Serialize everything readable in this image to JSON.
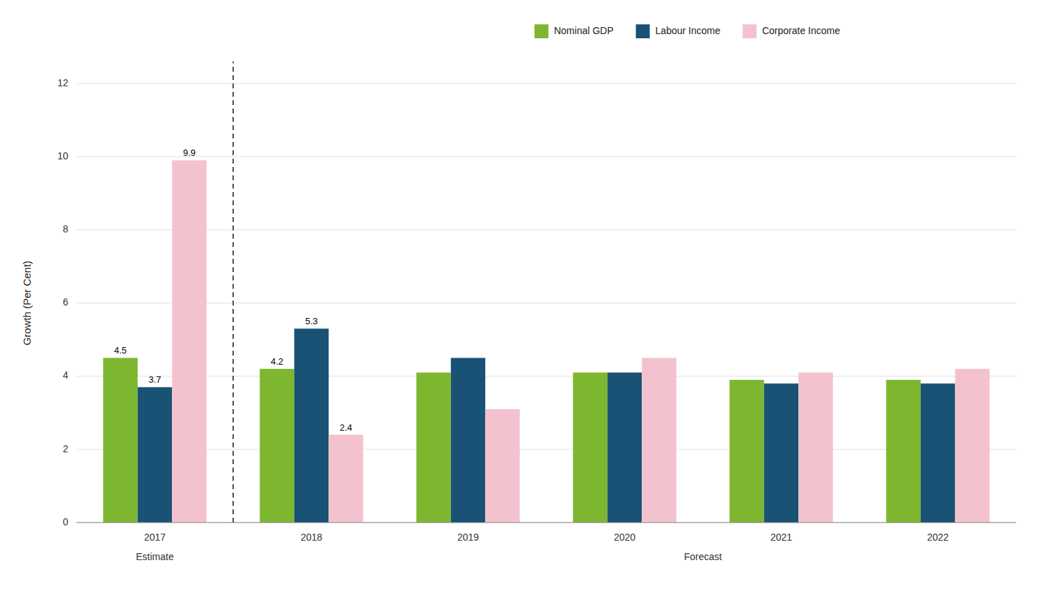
{
  "chart_data": {
    "type": "bar",
    "y_label": "Growth (Per Cent)",
    "categories": [
      "2017",
      "2018",
      "2019",
      "2020",
      "2021",
      "2022"
    ],
    "series": [
      {
        "name": "Nominal GDP",
        "color": "#7db72f",
        "values": [
          4.5,
          4.2,
          4.1,
          4.1,
          3.9,
          3.9
        ],
        "value_labels": [
          "4.5",
          "4.2",
          null,
          null,
          null,
          null
        ]
      },
      {
        "name": "Labour Income",
        "color": "#1a5276",
        "values": [
          3.7,
          5.3,
          4.5,
          4.1,
          3.8,
          3.8
        ],
        "value_labels": [
          "3.7",
          "5.3",
          null,
          null,
          null,
          null
        ]
      },
      {
        "name": "Corporate Income",
        "color": "#f4c2ce",
        "values": [
          9.9,
          2.4,
          3.1,
          4.5,
          4.1,
          4.2
        ],
        "value_labels": [
          "9.9",
          "2.4",
          null,
          null,
          null,
          null
        ]
      }
    ],
    "annotations": [
      "Estimate",
      "Forecast"
    ],
    "ylim": [
      0,
      12
    ],
    "yticks": [
      0,
      2,
      4,
      6,
      8,
      10,
      12
    ],
    "grid": true,
    "legend": "top",
    "data_labels": true
  }
}
